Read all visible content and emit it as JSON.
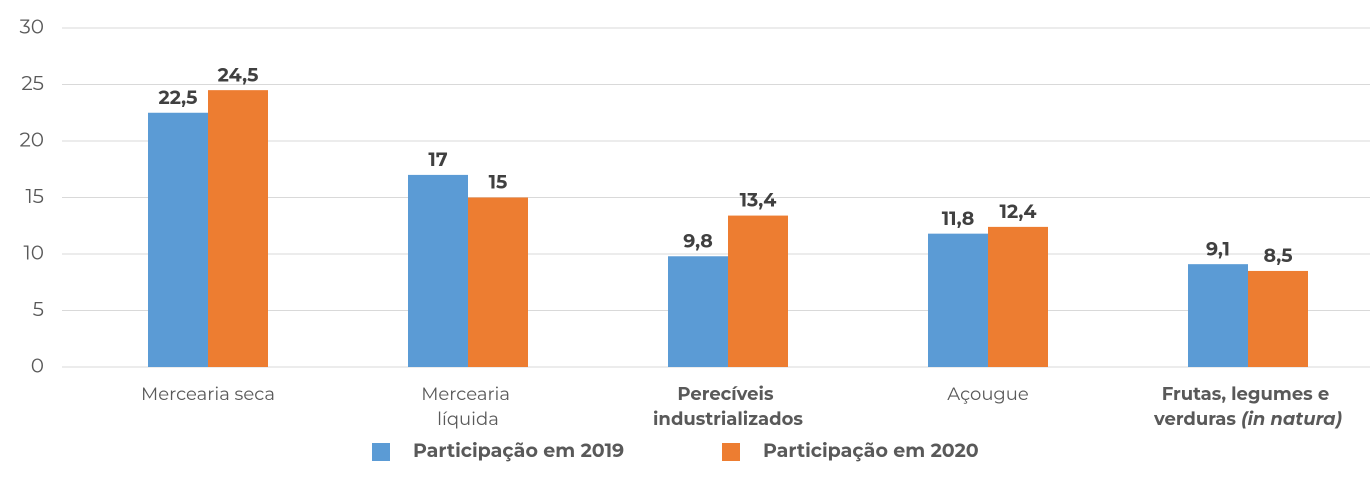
{
  "chart_data": {
    "type": "bar",
    "categories": [
      "Mercearia seca",
      "Mercearia líquida",
      "Perecíveis industrializados",
      "Açougue",
      "Frutas, legumes e verduras (in natura)"
    ],
    "series": [
      {
        "name": "Participação em 2019",
        "color": "#5b9bd5",
        "values": [
          22.5,
          17,
          9.8,
          11.8,
          9.1
        ],
        "value_labels": [
          "22,5",
          "17",
          "9,8",
          "11,8",
          "9,1"
        ]
      },
      {
        "name": "Participação em 2020",
        "color": "#ed7d31",
        "values": [
          24.5,
          15,
          13.4,
          12.4,
          8.5
        ],
        "value_labels": [
          "24,5",
          "15",
          "13,4",
          "12,4",
          "8,5"
        ]
      }
    ],
    "ylim": [
      0,
      30
    ],
    "yticks": [
      0,
      5,
      10,
      15,
      20,
      25,
      30
    ],
    "grid": true,
    "legend": "bottom"
  }
}
